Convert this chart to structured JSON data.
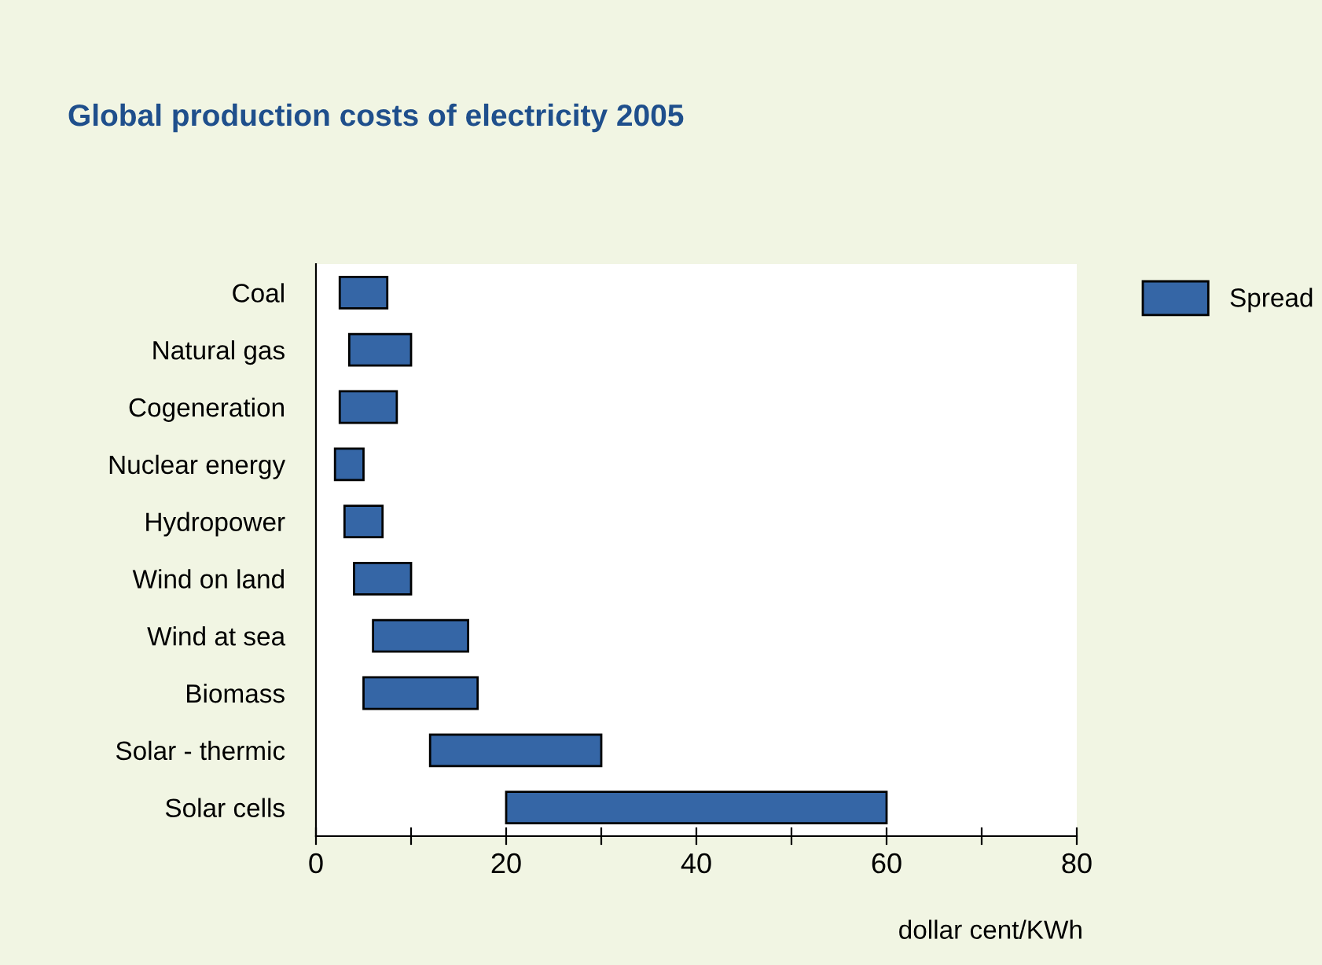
{
  "chart_data": {
    "type": "bar",
    "orientation": "horizontal",
    "title": "Global production costs of electricity 2005",
    "xlabel": "dollar cent/KWh",
    "categories": [
      "Coal",
      "Natural gas",
      "Cogeneration",
      "Nuclear energy",
      "Hydropower",
      "Wind on land",
      "Wind at sea",
      "Biomass",
      "Solar - thermic",
      "Solar cells"
    ],
    "series": [
      {
        "name": "Spread",
        "color": "#3566a6",
        "values": [
          5,
          6.5,
          6,
          3,
          4,
          6,
          10,
          12,
          18,
          40
        ],
        "base": [
          2.5,
          3.5,
          2.5,
          2,
          3,
          4,
          6,
          5,
          12,
          20
        ]
      }
    ],
    "xlim": [
      0,
      80
    ],
    "xticks": [
      0,
      {
        "value": 10,
        "label": null
      },
      20,
      {
        "value": 30,
        "label": null
      },
      40,
      {
        "value": 50,
        "label": null
      },
      60,
      {
        "value": 70,
        "label": null
      },
      80
    ],
    "grid": false,
    "legend": "top right"
  }
}
